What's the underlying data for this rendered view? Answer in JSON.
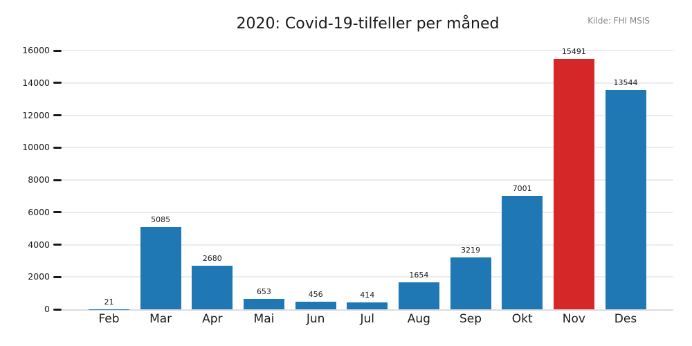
{
  "title": "2020: Covid-19-tilfeller per måned",
  "source_label": "Kilde: FHI MSIS",
  "colors": {
    "bar_default": "#1f77b4",
    "bar_highlight": "#d62728",
    "grid": "#ececec",
    "axis_line": "#dcdcdc",
    "tick": "#1a1a1a",
    "text": "#1a1a1a",
    "source_text": "#858585",
    "background": "#ffffff"
  },
  "chart_data": {
    "type": "bar",
    "title": "2020: Covid-19-tilfeller per måned",
    "categories": [
      "Feb",
      "Mar",
      "Apr",
      "Mai",
      "Jun",
      "Jul",
      "Aug",
      "Sep",
      "Okt",
      "Nov",
      "Des"
    ],
    "values": [
      21,
      5085,
      2680,
      653,
      456,
      414,
      1654,
      3219,
      7001,
      15491,
      13544
    ],
    "highlight_index": 9,
    "highlight_category": "Nov",
    "value_labels_shown": true,
    "xlabel": "",
    "ylabel": "",
    "ylim": [
      0,
      16000
    ],
    "yticks": [
      0,
      2000,
      4000,
      6000,
      8000,
      10000,
      12000,
      14000,
      16000
    ],
    "grid": true,
    "legend": false,
    "annotation": "Kilde: FHI MSIS"
  }
}
